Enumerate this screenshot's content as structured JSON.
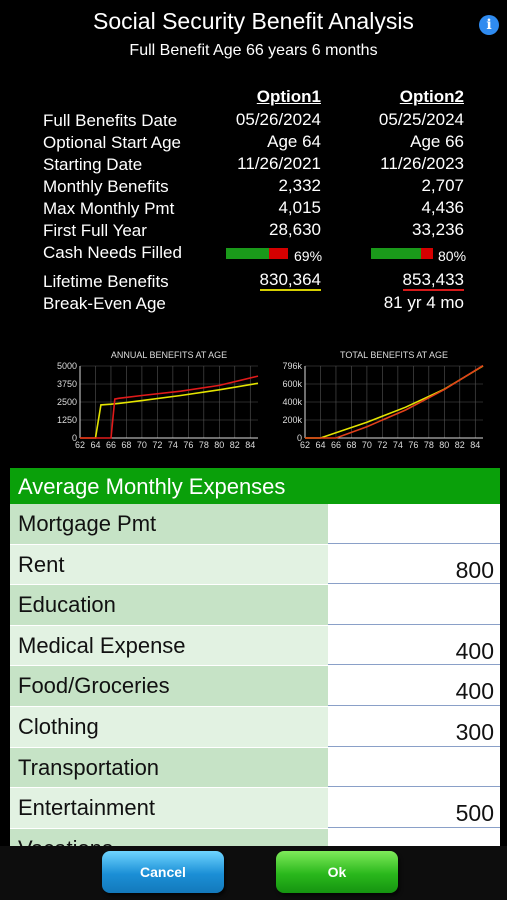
{
  "header": {
    "title": "Social Security Benefit Analysis",
    "subtitle": "Full Benefit Age 66 years 6 months",
    "info_icon": "info-icon"
  },
  "summary": {
    "col1_header": "Option1",
    "col2_header": "Option2",
    "rows": [
      {
        "label": "Full Benefits Date",
        "v1": "05/26/2024",
        "v2": "05/25/2024"
      },
      {
        "label": "Optional Start Age",
        "v1": "Age 64",
        "v2": "Age 66"
      },
      {
        "label": "Starting Date",
        "v1": "11/26/2021",
        "v2": "11/26/2023"
      },
      {
        "label": "Monthly Benefits",
        "v1": "2,332",
        "v2": "2,707"
      },
      {
        "label": "Max Monthly Pmt",
        "v1": "4,015",
        "v2": "4,436"
      },
      {
        "label": "First Full Year",
        "v1": "28,630",
        "v2": "33,236"
      }
    ],
    "cash_needs_label": "Cash Needs Filled",
    "cash_needs_v1": "69%",
    "cash_needs_v1_fraction": 0.69,
    "cash_needs_v2": "80%",
    "cash_needs_v2_fraction": 0.8,
    "lifetime_label": "Lifetime Benefits",
    "lifetime_v1": "830,364",
    "lifetime_v2": "853,433",
    "breakeven_label": "Break-Even Age",
    "breakeven_v2": "81 yr 4 mo"
  },
  "chart_data": [
    {
      "type": "line",
      "title": "ANNUAL BENEFITS AT AGE",
      "x_ticks": [
        "62",
        "64",
        "66",
        "68",
        "70",
        "72",
        "74",
        "76",
        "78",
        "80",
        "82",
        "84"
      ],
      "y_ticks": [
        "0",
        "1250",
        "2500",
        "3750",
        "5000"
      ],
      "ylim": [
        0,
        5000
      ],
      "xlim": [
        62,
        85
      ],
      "series": [
        {
          "color": "#e4e400",
          "x": [
            62,
            64,
            64.7,
            66,
            67,
            70,
            75,
            80,
            85
          ],
          "y": [
            0,
            0,
            2300,
            2350,
            2400,
            2600,
            2950,
            3350,
            3800
          ]
        },
        {
          "color": "#e01a1a",
          "x": [
            62,
            66,
            66.5,
            67,
            70,
            75,
            80,
            85
          ],
          "y": [
            0,
            0,
            2700,
            2760,
            2950,
            3250,
            3650,
            4300
          ]
        }
      ]
    },
    {
      "type": "line",
      "title": "TOTAL BENEFITS AT AGE",
      "x_ticks": [
        "62",
        "64",
        "66",
        "68",
        "70",
        "72",
        "74",
        "76",
        "78",
        "80",
        "82",
        "84"
      ],
      "y_ticks": [
        "0",
        "200k",
        "400k",
        "600k",
        "796k"
      ],
      "ylim": [
        0,
        796000
      ],
      "xlim": [
        62,
        85
      ],
      "series": [
        {
          "color": "#e4e400",
          "x": [
            62,
            64,
            70,
            75,
            80,
            85
          ],
          "y": [
            0,
            0,
            175000,
            340000,
            540000,
            796000
          ]
        },
        {
          "color": "#e0401a",
          "x": [
            62,
            66,
            70,
            75,
            80,
            85
          ],
          "y": [
            0,
            0,
            125000,
            310000,
            535000,
            800000
          ]
        }
      ]
    }
  ],
  "expenses": {
    "header": "Average Monthly Expenses",
    "rows": [
      {
        "label": "Mortgage Pmt",
        "value": ""
      },
      {
        "label": "Rent",
        "value": "800"
      },
      {
        "label": "Education",
        "value": ""
      },
      {
        "label": "Medical Expense",
        "value": "400"
      },
      {
        "label": "Food/Groceries",
        "value": "400"
      },
      {
        "label": "Clothing",
        "value": "300"
      },
      {
        "label": "Transportation",
        "value": ""
      },
      {
        "label": "Entertainment",
        "value": "500"
      },
      {
        "label": "Vacations",
        "value": ""
      }
    ]
  },
  "buttons": {
    "cancel": "Cancel",
    "ok": "Ok"
  },
  "colors": {
    "expense_header": "#0aa00a",
    "bar_fill": "#1a9a1a",
    "bar_empty": "#d40000"
  }
}
